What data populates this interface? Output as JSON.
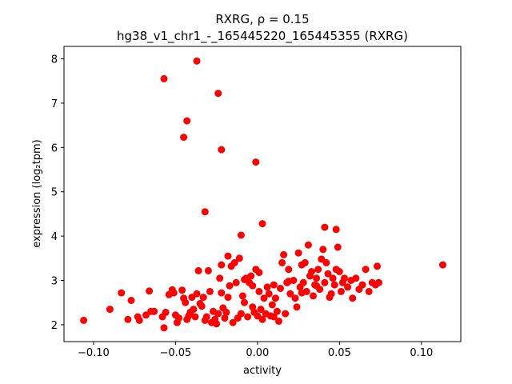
{
  "chart_data": {
    "type": "scatter",
    "title_line1": "RXRG, ρ = 0.15",
    "title_line2": "hg38_v1_chr1_-_165445220_165445355 (RXRG)",
    "xlabel": "activity",
    "ylabel": "expression (log₂tpm)",
    "xlim": [
      -0.118,
      0.124
    ],
    "ylim": [
      1.62,
      8.28
    ],
    "xticks": [
      -0.1,
      -0.05,
      0.0,
      0.05,
      0.1
    ],
    "xtick_labels": [
      "−0.10",
      "−0.05",
      "0.00",
      "0.05",
      "0.10"
    ],
    "yticks": [
      2,
      3,
      4,
      5,
      6,
      7,
      8
    ],
    "ytick_labels": [
      "2",
      "3",
      "4",
      "5",
      "6",
      "7",
      "8"
    ],
    "marker_color": "#ff0000",
    "grid": false,
    "points": [
      [
        -0.106,
        2.1
      ],
      [
        -0.09,
        2.35
      ],
      [
        -0.083,
        2.72
      ],
      [
        -0.077,
        2.55
      ],
      [
        -0.079,
        2.12
      ],
      [
        -0.073,
        2.18
      ],
      [
        -0.072,
        2.1
      ],
      [
        -0.068,
        2.22
      ],
      [
        -0.066,
        2.76
      ],
      [
        -0.065,
        2.3
      ],
      [
        -0.063,
        2.3
      ],
      [
        -0.058,
        2.18
      ],
      [
        -0.057,
        1.93
      ],
      [
        -0.056,
        2.28
      ],
      [
        -0.054,
        2.68
      ],
      [
        -0.052,
        2.79
      ],
      [
        -0.051,
        2.72
      ],
      [
        -0.05,
        2.22
      ],
      [
        -0.049,
        2.05
      ],
      [
        -0.048,
        2.15
      ],
      [
        -0.046,
        2.78
      ],
      [
        -0.045,
        2.6
      ],
      [
        -0.044,
        2.5
      ],
      [
        -0.043,
        2.12
      ],
      [
        -0.042,
        2.2
      ],
      [
        -0.041,
        2.28
      ],
      [
        -0.04,
        2.62
      ],
      [
        -0.039,
        2.35
      ],
      [
        -0.038,
        2.18
      ],
      [
        -0.037,
        2.7
      ],
      [
        -0.036,
        3.22
      ],
      [
        -0.034,
        2.42
      ],
      [
        -0.033,
        2.62
      ],
      [
        -0.032,
        2.1
      ],
      [
        -0.031,
        2.18
      ],
      [
        -0.03,
        3.22
      ],
      [
        -0.029,
        2.75
      ],
      [
        -0.028,
        2.05
      ],
      [
        -0.027,
        2.3
      ],
      [
        -0.026,
        2.12
      ],
      [
        -0.025,
        2.02
      ],
      [
        -0.024,
        2.25
      ],
      [
        -0.023,
        3.05
      ],
      [
        -0.022,
        2.72
      ],
      [
        -0.022,
        3.35
      ],
      [
        -0.021,
        2.38
      ],
      [
        -0.02,
        2.15
      ],
      [
        -0.019,
        2.28
      ],
      [
        -0.018,
        2.62
      ],
      [
        -0.018,
        3.55
      ],
      [
        -0.017,
        2.88
      ],
      [
        -0.016,
        3.32
      ],
      [
        -0.015,
        2.05
      ],
      [
        -0.014,
        3.4
      ],
      [
        -0.013,
        2.95
      ],
      [
        -0.012,
        2.15
      ],
      [
        -0.011,
        3.5
      ],
      [
        -0.01,
        2.25
      ],
      [
        -0.009,
        2.65
      ],
      [
        -0.008,
        2.5
      ],
      [
        -0.007,
        3.05
      ],
      [
        -0.006,
        2.18
      ],
      [
        -0.005,
        2.95
      ],
      [
        -0.004,
        3.1
      ],
      [
        -0.003,
        2.88
      ],
      [
        -0.002,
        2.28
      ],
      [
        -0.001,
        3.25
      ],
      [
        0.0,
        2.2
      ],
      [
        0.001,
        2.75
      ],
      [
        0.002,
        2.35
      ],
      [
        0.003,
        2.12
      ],
      [
        0.004,
        2.6
      ],
      [
        0.005,
        2.25
      ],
      [
        0.006,
        2.85
      ],
      [
        0.007,
        2.7
      ],
      [
        0.008,
        2.2
      ],
      [
        0.009,
        2.45
      ],
      [
        0.01,
        2.9
      ],
      [
        0.011,
        2.6
      ],
      [
        0.012,
        2.3
      ],
      [
        0.013,
        2.08
      ],
      [
        0.014,
        2.82
      ],
      [
        0.015,
        3.4
      ],
      [
        0.016,
        3.58
      ],
      [
        0.017,
        2.25
      ],
      [
        0.018,
        2.95
      ],
      [
        0.019,
        3.25
      ],
      [
        0.02,
        2.7
      ],
      [
        0.022,
        3.0
      ],
      [
        0.023,
        2.6
      ],
      [
        0.024,
        2.4
      ],
      [
        0.025,
        3.62
      ],
      [
        0.026,
        2.85
      ],
      [
        0.027,
        3.35
      ],
      [
        0.028,
        2.95
      ],
      [
        0.029,
        3.4
      ],
      [
        0.03,
        2.75
      ],
      [
        0.031,
        3.8
      ],
      [
        0.032,
        3.1
      ],
      [
        0.033,
        3.2
      ],
      [
        0.034,
        2.65
      ],
      [
        0.035,
        2.9
      ],
      [
        0.036,
        3.05
      ],
      [
        0.037,
        3.25
      ],
      [
        0.038,
        2.8
      ],
      [
        0.039,
        3.48
      ],
      [
        0.04,
        3.7
      ],
      [
        0.041,
        2.95
      ],
      [
        0.042,
        3.4
      ],
      [
        0.043,
        3.15
      ],
      [
        0.044,
        2.62
      ],
      [
        0.045,
        2.7
      ],
      [
        0.046,
        3.05
      ],
      [
        0.047,
        2.9
      ],
      [
        0.048,
        3.25
      ],
      [
        0.049,
        3.75
      ],
      [
        0.05,
        3.2
      ],
      [
        0.051,
        2.75
      ],
      [
        0.052,
        2.95
      ],
      [
        0.053,
        3.05
      ],
      [
        0.055,
        2.85
      ],
      [
        0.057,
        3.0
      ],
      [
        0.058,
        2.6
      ],
      [
        0.06,
        3.05
      ],
      [
        0.062,
        2.8
      ],
      [
        0.064,
        2.9
      ],
      [
        0.066,
        3.25
      ],
      [
        0.068,
        2.75
      ],
      [
        0.07,
        2.95
      ],
      [
        0.072,
        2.9
      ],
      [
        0.073,
        3.32
      ],
      [
        0.074,
        2.95
      ],
      [
        -0.008,
        3.02
      ],
      [
        0.001,
        3.18
      ],
      [
        0.019,
        2.98
      ],
      [
        0.036,
        2.88
      ],
      [
        -0.035,
        2.48
      ],
      [
        -0.003,
        2.4
      ],
      [
        0.01,
        2.18
      ],
      [
        0.027,
        2.72
      ],
      [
        0.041,
        4.2
      ],
      [
        0.048,
        4.15
      ],
      [
        0.003,
        4.28
      ],
      [
        -0.01,
        4.02
      ],
      [
        -0.032,
        4.55
      ],
      [
        -0.001,
        5.67
      ],
      [
        -0.022,
        5.95
      ],
      [
        -0.045,
        6.23
      ],
      [
        -0.043,
        6.6
      ],
      [
        -0.024,
        7.22
      ],
      [
        -0.057,
        7.55
      ],
      [
        -0.037,
        7.95
      ],
      [
        0.113,
        3.35
      ]
    ]
  }
}
